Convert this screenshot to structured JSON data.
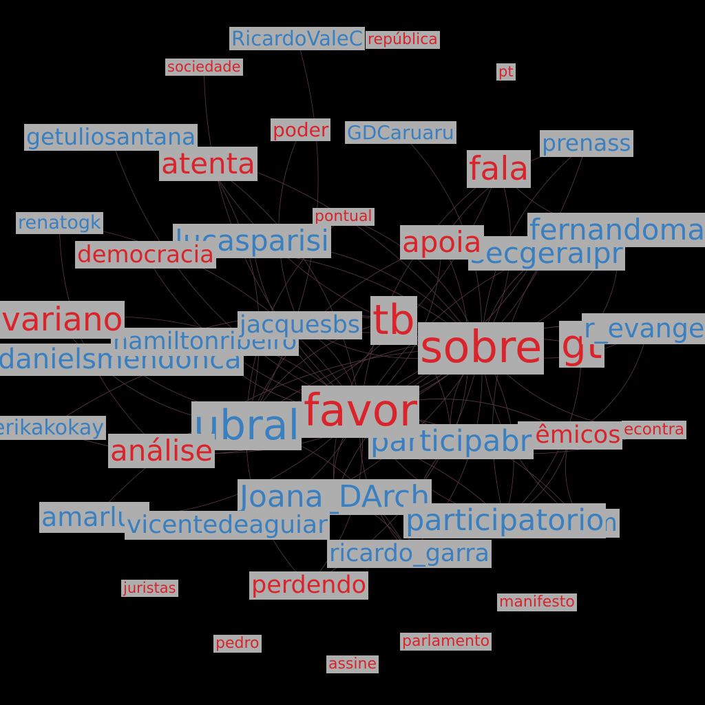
{
  "graph": {
    "colors": {
      "background": "#000000",
      "label_box": "#aeaeae",
      "user_text": "#3a7fc0",
      "word_text": "#d8242a",
      "edge": "#5a3a48"
    },
    "nodes": [
      {
        "id": "n_ricardovalec",
        "label": "RicardoValeC",
        "kind": "user"
      },
      {
        "id": "n_republica",
        "label": "república",
        "kind": "word"
      },
      {
        "id": "n_sociedade",
        "label": "sociedade",
        "kind": "word"
      },
      {
        "id": "n_pt",
        "label": "pt",
        "kind": "word"
      },
      {
        "id": "n_getuliosantana",
        "label": "getuliosantana",
        "kind": "user"
      },
      {
        "id": "n_poder",
        "label": "poder",
        "kind": "word"
      },
      {
        "id": "n_gdcaruaru",
        "label": "GDCaruaru",
        "kind": "user"
      },
      {
        "id": "n_prenass",
        "label": "prenass",
        "kind": "user"
      },
      {
        "id": "n_atenta",
        "label": "atenta",
        "kind": "word"
      },
      {
        "id": "n_fala",
        "label": "fala",
        "kind": "word"
      },
      {
        "id": "n_renatogk",
        "label": "renatogk",
        "kind": "user"
      },
      {
        "id": "n_pontual",
        "label": "pontual",
        "kind": "word"
      },
      {
        "id": "n_lucasparisi",
        "label": "lucasparisi",
        "kind": "user"
      },
      {
        "id": "n_fernandoma",
        "label": "fernandoma",
        "kind": "user"
      },
      {
        "id": "n_secgeralpr",
        "label": "secgeralpr",
        "kind": "user"
      },
      {
        "id": "n_apoia",
        "label": "apoia",
        "kind": "word"
      },
      {
        "id": "n_democracia",
        "label": "democracia",
        "kind": "word"
      },
      {
        "id": "n_ivariano",
        "label": "ivariano",
        "kind": "word"
      },
      {
        "id": "n_jacquesbs",
        "label": "jacquesbs",
        "kind": "user"
      },
      {
        "id": "n_tb",
        "label": "tb",
        "kind": "word"
      },
      {
        "id": "n_sobre",
        "label": "sobre",
        "kind": "word"
      },
      {
        "id": "n_gt",
        "label": "gt",
        "kind": "word"
      },
      {
        "id": "n_revangel",
        "label": "r_evangel",
        "kind": "user"
      },
      {
        "id": "n_hamiltonribeiro",
        "label": "hamiltonribeiro",
        "kind": "user"
      },
      {
        "id": "n_danielsmendonca",
        "label": "danielsmendonca",
        "kind": "user"
      },
      {
        "id": "n_erikakokay",
        "label": "erikakokay",
        "kind": "user"
      },
      {
        "id": "n_ubral",
        "label": "ubral",
        "kind": "user"
      },
      {
        "id": "n_favor",
        "label": "favor",
        "kind": "word"
      },
      {
        "id": "n_participabr",
        "label": "participabr",
        "kind": "user"
      },
      {
        "id": "n_academicos",
        "label": "dêmicos",
        "kind": "word"
      },
      {
        "id": "n_econtra",
        "label": "econtra",
        "kind": "word"
      },
      {
        "id": "n_analise",
        "label": "análise",
        "kind": "word"
      },
      {
        "id": "n_joanadarch",
        "label": "Joana_DArch",
        "kind": "user"
      },
      {
        "id": "n_amarlus",
        "label": "amarlus",
        "kind": "user"
      },
      {
        "id": "n_vicentedeaguiar",
        "label": "vicentedeaguiar",
        "kind": "user"
      },
      {
        "id": "n_participatorio",
        "label": "participatorio",
        "kind": "user"
      },
      {
        "id": "n_asim",
        "label": "a_sim",
        "kind": "user"
      },
      {
        "id": "n_ricardogarra",
        "label": "ricardo_garra",
        "kind": "user"
      },
      {
        "id": "n_perdendo",
        "label": "perdendo",
        "kind": "word"
      },
      {
        "id": "n_juristas",
        "label": "juristas",
        "kind": "word"
      },
      {
        "id": "n_manifesto",
        "label": "manifesto",
        "kind": "word"
      },
      {
        "id": "n_pedro",
        "label": "pedro",
        "kind": "word"
      },
      {
        "id": "n_parlamento",
        "label": "parlamento",
        "kind": "word"
      },
      {
        "id": "n_assine",
        "label": "assine",
        "kind": "word"
      }
    ],
    "edges": [
      [
        "n_ricardovalec",
        "n_ubral"
      ],
      [
        "n_sociedade",
        "n_favor"
      ],
      [
        "n_getuliosantana",
        "n_sobre"
      ],
      [
        "n_getuliosantana",
        "n_favor"
      ],
      [
        "n_atenta",
        "n_favor"
      ],
      [
        "n_atenta",
        "n_sobre"
      ],
      [
        "n_atenta",
        "n_ubral"
      ],
      [
        "n_poder",
        "n_jacquesbs"
      ],
      [
        "n_gdcaruaru",
        "n_sobre"
      ],
      [
        "n_prenass",
        "n_sobre"
      ],
      [
        "n_prenass",
        "n_favor"
      ],
      [
        "n_prenass",
        "n_apoia"
      ],
      [
        "n_fala",
        "n_sobre"
      ],
      [
        "n_fala",
        "n_favor"
      ],
      [
        "n_fala",
        "n_ubral"
      ],
      [
        "n_fala",
        "n_fernandoma"
      ],
      [
        "n_renatogk",
        "n_favor"
      ],
      [
        "n_renatogk",
        "n_analise"
      ],
      [
        "n_pontual",
        "n_sobre"
      ],
      [
        "n_pontual",
        "n_ubral"
      ],
      [
        "n_lucasparisi",
        "n_sobre"
      ],
      [
        "n_lucasparisi",
        "n_favor"
      ],
      [
        "n_fernandoma",
        "n_sobre"
      ],
      [
        "n_fernandoma",
        "n_favor"
      ],
      [
        "n_fernandoma",
        "n_gt"
      ],
      [
        "n_secgeralpr",
        "n_sobre"
      ],
      [
        "n_secgeralpr",
        "n_favor"
      ],
      [
        "n_secgeralpr",
        "n_participatorio"
      ],
      [
        "n_apoia",
        "n_favor"
      ],
      [
        "n_apoia",
        "n_ubral"
      ],
      [
        "n_apoia",
        "n_participabr"
      ],
      [
        "n_democracia",
        "n_favor"
      ],
      [
        "n_democracia",
        "n_sobre"
      ],
      [
        "n_ivariano",
        "n_ubral"
      ],
      [
        "n_ivariano",
        "n_favor"
      ],
      [
        "n_jacquesbs",
        "n_sobre"
      ],
      [
        "n_jacquesbs",
        "n_favor"
      ],
      [
        "n_tb",
        "n_ubral"
      ],
      [
        "n_tb",
        "n_participabr"
      ],
      [
        "n_tb",
        "n_joanadarch"
      ],
      [
        "n_sobre",
        "n_ubral"
      ],
      [
        "n_sobre",
        "n_participabr"
      ],
      [
        "n_sobre",
        "n_participatorio"
      ],
      [
        "n_sobre",
        "n_asim"
      ],
      [
        "n_sobre",
        "n_ricardogarra"
      ],
      [
        "n_sobre",
        "n_joanadarch"
      ],
      [
        "n_gt",
        "n_participatorio"
      ],
      [
        "n_gt",
        "n_ubral"
      ],
      [
        "n_revangel",
        "n_sobre"
      ],
      [
        "n_revangel",
        "n_favor"
      ],
      [
        "n_revangel",
        "n_academicos"
      ],
      [
        "n_hamiltonribeiro",
        "n_favor"
      ],
      [
        "n_hamiltonribeiro",
        "n_sobre"
      ],
      [
        "n_danielsmendonca",
        "n_favor"
      ],
      [
        "n_danielsmendonca",
        "n_sobre"
      ],
      [
        "n_erikakokay",
        "n_favor"
      ],
      [
        "n_erikakokay",
        "n_sobre"
      ],
      [
        "n_ubral",
        "n_favor"
      ],
      [
        "n_ubral",
        "n_participatorio"
      ],
      [
        "n_ubral",
        "n_analise"
      ],
      [
        "n_favor",
        "n_participabr"
      ],
      [
        "n_favor",
        "n_joanadarch"
      ],
      [
        "n_favor",
        "n_vicentedeaguiar"
      ],
      [
        "n_favor",
        "n_ricardogarra"
      ],
      [
        "n_favor",
        "n_perdendo"
      ],
      [
        "n_favor",
        "n_participatorio"
      ],
      [
        "n_favor",
        "n_academicos"
      ],
      [
        "n_favor",
        "n_econtra"
      ],
      [
        "n_favor",
        "n_asim"
      ],
      [
        "n_participabr",
        "n_ricardogarra"
      ],
      [
        "n_academicos",
        "n_participatorio"
      ],
      [
        "n_analise",
        "n_sobre"
      ],
      [
        "n_joanadarch",
        "n_ricardogarra"
      ],
      [
        "n_amarlus",
        "n_favor"
      ],
      [
        "n_amarlus",
        "n_sobre"
      ],
      [
        "n_vicentedeaguiar",
        "n_sobre"
      ],
      [
        "n_perdendo",
        "n_ubral"
      ],
      [
        "n_perdendo",
        "n_sobre"
      ],
      [
        "n_asim",
        "n_academicos"
      ],
      [
        "n_ricardogarra",
        "n_ubral"
      ],
      [
        "n_econtra",
        "n_sobre"
      ]
    ]
  }
}
